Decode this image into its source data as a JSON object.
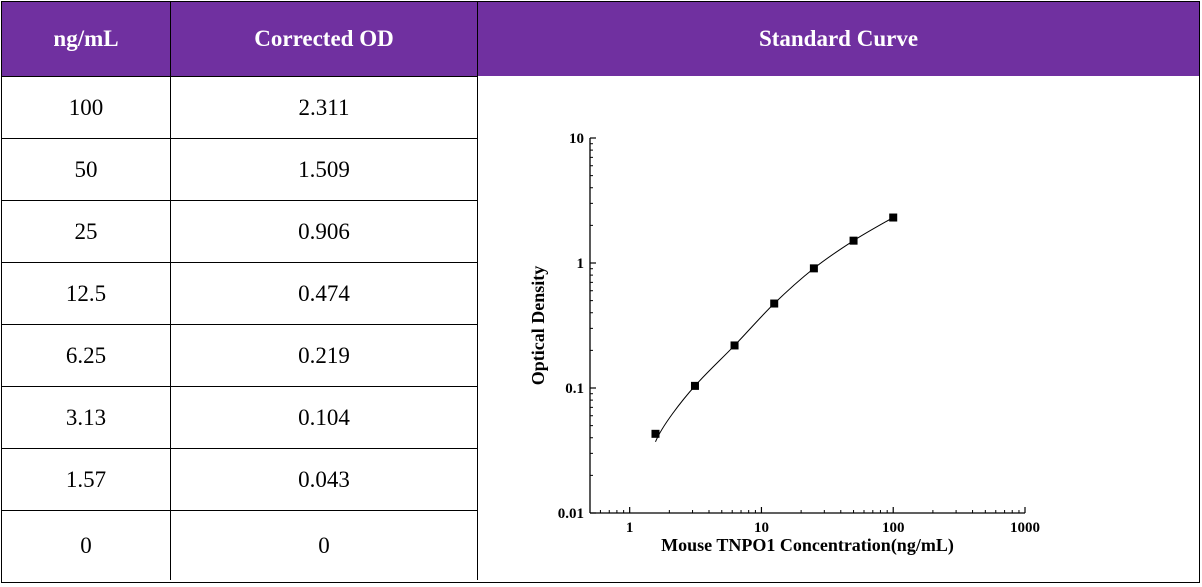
{
  "header": {
    "col1": "ng/mL",
    "col2": "Corrected OD",
    "col3": "Standard Curve"
  },
  "colors": {
    "header_bg": "#7030a0",
    "header_text": "#ffffff"
  },
  "table": {
    "rows": [
      {
        "conc": "100",
        "od": "2.311"
      },
      {
        "conc": "50",
        "od": "1.509"
      },
      {
        "conc": "25",
        "od": "0.906"
      },
      {
        "conc": "12.5",
        "od": "0.474"
      },
      {
        "conc": "6.25",
        "od": "0.219"
      },
      {
        "conc": "3.13",
        "od": "0.104"
      },
      {
        "conc": "1.57",
        "od": "0.043"
      },
      {
        "conc": "0",
        "od": "0"
      }
    ]
  },
  "chart_data": {
    "type": "scatter",
    "title": "",
    "xlabel": "Mouse TNPO1 Concentration(ng/mL)",
    "ylabel": "Optical Density",
    "x_scale": "log",
    "y_scale": "log",
    "xlim": [
      0.5,
      1000
    ],
    "ylim": [
      0.01,
      10
    ],
    "x_ticks": [
      "1",
      "10",
      "100",
      "1000"
    ],
    "y_ticks": [
      "0.01",
      "0.1",
      "1",
      "10"
    ],
    "grid": false,
    "series": [
      {
        "x": [
          1.57,
          3.13,
          6.25,
          12.5,
          25,
          50,
          100
        ],
        "y": [
          0.043,
          0.104,
          0.219,
          0.474,
          0.906,
          1.509,
          2.311
        ],
        "marker": "square",
        "fitted_curve": true
      }
    ]
  }
}
